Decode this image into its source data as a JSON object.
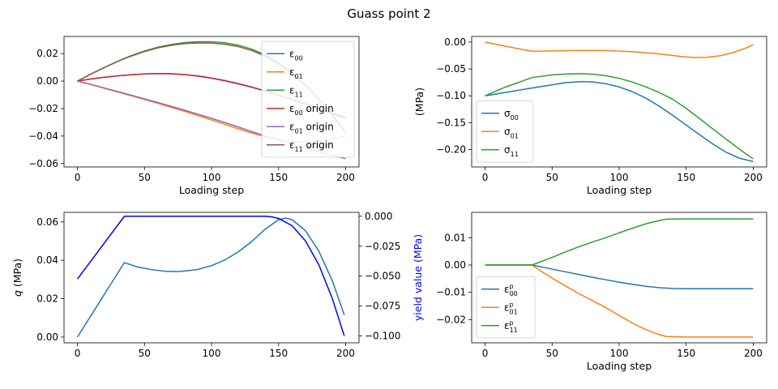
{
  "suptitle": "Guass point 2",
  "colors": {
    "c0": "#1f77b4",
    "c1": "#ff7f0e",
    "c2": "#2ca02c",
    "c3": "#d62728",
    "c4": "#9467bd",
    "c5": "#8c564b",
    "yield": "#0000ff"
  },
  "chart_data": [
    {
      "id": "strain",
      "type": "line",
      "xlabel": "Loading step",
      "ylabel": "",
      "xlim": [
        -10,
        210
      ],
      "ylim": [
        -0.0625,
        0.0325
      ],
      "xticks": [
        0,
        50,
        100,
        150,
        200
      ],
      "yticks": [
        -0.06,
        -0.04,
        -0.02,
        0.0,
        0.02
      ],
      "ytick_labels": [
        "−0.06",
        "−0.04",
        "−0.02",
        "0.00",
        "0.02"
      ],
      "legend_position": "upper right",
      "series": [
        {
          "sym": "ε",
          "sub": "00",
          "suffix": "",
          "color": "#1f77b4",
          "x": [
            0,
            10,
            20,
            30,
            40,
            50,
            55,
            60,
            70,
            80,
            90,
            100,
            110,
            120,
            130,
            140,
            150,
            160,
            170,
            180,
            190,
            200
          ],
          "y": [
            0,
            0.0015,
            0.0028,
            0.0038,
            0.0046,
            0.0052,
            0.0054,
            0.0055,
            0.0054,
            0.0048,
            0.0038,
            0.0023,
            0.0004,
            -0.0018,
            -0.0043,
            -0.0071,
            -0.0101,
            -0.0132,
            -0.0165,
            -0.0198,
            -0.0232,
            -0.0265
          ]
        },
        {
          "sym": "ε",
          "sub": "01",
          "suffix": "",
          "color": "#ff7f0e",
          "x": [
            0,
            10,
            20,
            30,
            40,
            50,
            60,
            70,
            80,
            90,
            100,
            110,
            120,
            130,
            140,
            150,
            160,
            170,
            180,
            190,
            200
          ],
          "y": [
            0,
            -0.0025,
            -0.0052,
            -0.0079,
            -0.0106,
            -0.0134,
            -0.0162,
            -0.0191,
            -0.022,
            -0.0251,
            -0.0283,
            -0.0315,
            -0.0347,
            -0.0378,
            -0.0404,
            -0.0424,
            -0.0437,
            -0.0441,
            -0.0436,
            -0.042,
            -0.04
          ]
        },
        {
          "sym": "ε",
          "sub": "11",
          "suffix": "",
          "color": "#2ca02c",
          "x": [
            0,
            10,
            20,
            30,
            40,
            50,
            60,
            70,
            80,
            90,
            100,
            110,
            120,
            130,
            140,
            150,
            160,
            170,
            180,
            190,
            200
          ],
          "y": [
            0,
            0.0051,
            0.0099,
            0.0145,
            0.0185,
            0.0219,
            0.0247,
            0.0267,
            0.0281,
            0.0287,
            0.0287,
            0.0279,
            0.0262,
            0.0233,
            0.0191,
            0.0133,
            0.0061,
            -0.0027,
            -0.0129,
            -0.0245,
            -0.0375
          ]
        },
        {
          "sym": "ε",
          "sub": "00",
          "suffix": " origin",
          "color": "#d62728",
          "x": [
            0,
            10,
            20,
            30,
            40,
            50,
            55,
            60,
            70,
            80,
            90,
            100,
            110,
            120,
            130,
            140,
            150,
            160,
            170,
            180,
            190,
            200
          ],
          "y": [
            0,
            0.0015,
            0.0028,
            0.0038,
            0.0046,
            0.0052,
            0.0054,
            0.0055,
            0.0053,
            0.0047,
            0.0036,
            0.0021,
            0.0002,
            -0.002,
            -0.0045,
            -0.0073,
            -0.0103,
            -0.0135,
            -0.0168,
            -0.0202,
            -0.0237,
            -0.0272
          ]
        },
        {
          "sym": "ε",
          "sub": "01",
          "suffix": " origin",
          "color": "#9467bd",
          "x": [
            0,
            10,
            20,
            30,
            40,
            50,
            60,
            70,
            80,
            90,
            100,
            110,
            120,
            130,
            140,
            150,
            160,
            170,
            180,
            190,
            200
          ],
          "y": [
            0,
            -0.0024,
            -0.005,
            -0.0076,
            -0.0102,
            -0.0129,
            -0.0156,
            -0.0184,
            -0.0212,
            -0.0241,
            -0.0271,
            -0.0302,
            -0.0334,
            -0.0367,
            -0.0399,
            -0.043,
            -0.046,
            -0.0488,
            -0.0514,
            -0.0539,
            -0.0565
          ]
        },
        {
          "sym": "ε",
          "sub": "11",
          "suffix": " origin",
          "color": "#8c564b",
          "x": [
            0,
            10,
            20,
            30,
            40,
            50,
            60,
            70,
            80,
            90,
            100,
            110,
            120,
            130,
            140,
            150,
            160,
            170,
            180,
            190,
            200
          ],
          "y": [
            0,
            0.0051,
            0.0098,
            0.0143,
            0.0182,
            0.0215,
            0.0242,
            0.0261,
            0.0273,
            0.0278,
            0.0277,
            0.0268,
            0.0251,
            0.0223,
            0.0182,
            0.0126,
            0.0055,
            -0.0031,
            -0.0131,
            -0.0245,
            -0.0373
          ]
        }
      ]
    },
    {
      "id": "stress",
      "type": "line",
      "xlabel": "Loading step",
      "ylabel": "(MPa)",
      "xlim": [
        -10,
        210
      ],
      "ylim": [
        -0.2325,
        0.0105
      ],
      "xticks": [
        0,
        50,
        100,
        150,
        200
      ],
      "yticks": [
        -0.2,
        -0.15,
        -0.1,
        -0.05,
        0.0
      ],
      "ytick_labels": [
        "−0.20",
        "−0.15",
        "−0.10",
        "−0.05",
        "0.00"
      ],
      "legend_position": "lower left",
      "series": [
        {
          "sym": "σ",
          "sub": "00",
          "suffix": "",
          "color": "#1f77b4",
          "x": [
            0,
            35,
            50,
            60,
            72,
            80,
            90,
            100,
            110,
            120,
            130,
            140,
            150,
            160,
            170,
            180,
            190,
            200
          ],
          "y": [
            -0.1,
            -0.0855,
            -0.0795,
            -0.0755,
            -0.0735,
            -0.0742,
            -0.0775,
            -0.0835,
            -0.0925,
            -0.1045,
            -0.1195,
            -0.1365,
            -0.1545,
            -0.1725,
            -0.19,
            -0.2055,
            -0.2165,
            -0.2225
          ]
        },
        {
          "sym": "σ",
          "sub": "01",
          "suffix": "",
          "color": "#ff7f0e",
          "x": [
            0,
            10,
            20,
            35,
            50,
            70,
            90,
            110,
            130,
            145,
            155,
            165,
            175,
            185,
            195,
            200
          ],
          "y": [
            0,
            -0.005,
            -0.01,
            -0.017,
            -0.0165,
            -0.0155,
            -0.0158,
            -0.0178,
            -0.022,
            -0.0265,
            -0.0285,
            -0.0283,
            -0.0255,
            -0.0195,
            -0.0105,
            -0.0045
          ]
        },
        {
          "sym": "σ",
          "sub": "11",
          "suffix": "",
          "color": "#2ca02c",
          "x": [
            0,
            15,
            35,
            50,
            60,
            72,
            80,
            90,
            100,
            110,
            120,
            130,
            140,
            150,
            160,
            170,
            180,
            190,
            200
          ],
          "y": [
            -0.1,
            -0.084,
            -0.066,
            -0.061,
            -0.0595,
            -0.0587,
            -0.0597,
            -0.0625,
            -0.0675,
            -0.0745,
            -0.0835,
            -0.094,
            -0.1065,
            -0.1235,
            -0.1425,
            -0.162,
            -0.181,
            -0.2,
            -0.2175
          ]
        }
      ]
    },
    {
      "id": "q",
      "type": "line",
      "xlabel": "",
      "ylabel": "q (MPa)",
      "ylabel_sym": "q",
      "ylabel_unit": " (MPa)",
      "y2label": "yield value (MPa)",
      "xlim": [
        -10,
        210
      ],
      "ylim": [
        -0.003,
        0.065
      ],
      "y2lim": [
        -0.1058,
        0.0033
      ],
      "xticks": [
        0,
        50,
        100,
        150,
        200
      ],
      "yticks": [
        0.0,
        0.02,
        0.04,
        0.06
      ],
      "ytick_labels": [
        "0.00",
        "0.02",
        "0.04",
        "0.06"
      ],
      "y2ticks": [
        -0.1,
        -0.075,
        -0.05,
        -0.025,
        0.0
      ],
      "y2tick_labels": [
        "−0.100",
        "−0.075",
        "−0.050",
        "−0.025",
        "0.000"
      ],
      "series": [
        {
          "name": "q",
          "axis": "left",
          "color": "#1f77b4",
          "x": [
            0,
            35,
            45,
            55,
            65,
            73,
            80,
            90,
            100,
            110,
            120,
            130,
            140,
            150,
            155,
            160,
            170,
            180,
            190,
            199
          ],
          "y": [
            0,
            0.0388,
            0.0365,
            0.0352,
            0.0343,
            0.0341,
            0.0344,
            0.0353,
            0.0372,
            0.0402,
            0.0444,
            0.0498,
            0.0562,
            0.0612,
            0.062,
            0.0612,
            0.0555,
            0.0448,
            0.0295,
            0.0115
          ]
        },
        {
          "name": "yield value",
          "axis": "right",
          "color": "#0000ff",
          "x": [
            0,
            35,
            50,
            100,
            140,
            145,
            150,
            160,
            170,
            180,
            190,
            199
          ],
          "y": [
            -0.0525,
            0,
            0,
            0,
            0,
            -0.0005,
            -0.0018,
            -0.0078,
            -0.0205,
            -0.0405,
            -0.0685,
            -0.1
          ]
        }
      ]
    },
    {
      "id": "plastic",
      "type": "line",
      "xlabel": "Loading step",
      "ylabel": "",
      "xlim": [
        -10,
        210
      ],
      "ylim": [
        -0.0285,
        0.0193
      ],
      "xticks": [
        0,
        50,
        100,
        150,
        200
      ],
      "yticks": [
        -0.02,
        -0.01,
        0.0,
        0.01
      ],
      "ytick_labels": [
        "−0.02",
        "−0.01",
        "0.00",
        "0.01"
      ],
      "legend_position": "lower left",
      "series": [
        {
          "sym": "ε",
          "sub": "00",
          "sup": "p",
          "suffix": "",
          "color": "#1f77b4",
          "x": [
            0,
            35,
            50,
            60,
            70,
            80,
            90,
            100,
            110,
            120,
            130,
            140,
            150,
            175,
            200
          ],
          "y": [
            0,
            0,
            -0.0015,
            -0.0025,
            -0.0035,
            -0.0045,
            -0.0054,
            -0.0063,
            -0.0071,
            -0.0078,
            -0.0083,
            -0.0086,
            -0.0087,
            -0.0087,
            -0.0087
          ]
        },
        {
          "sym": "ε",
          "sub": "01",
          "sup": "p",
          "suffix": "",
          "color": "#ff7f0e",
          "x": [
            0,
            35,
            40,
            50,
            60,
            70,
            80,
            90,
            100,
            110,
            120,
            130,
            135,
            150,
            175,
            200
          ],
          "y": [
            0,
            0,
            -0.0017,
            -0.0048,
            -0.0077,
            -0.0105,
            -0.013,
            -0.0156,
            -0.0185,
            -0.0213,
            -0.0237,
            -0.0255,
            -0.0262,
            -0.0264,
            -0.0264,
            -0.0264
          ]
        },
        {
          "sym": "ε",
          "sub": "11",
          "sup": "p",
          "suffix": "",
          "color": "#2ca02c",
          "x": [
            0,
            35,
            50,
            60,
            70,
            80,
            90,
            100,
            110,
            120,
            130,
            135,
            150,
            175,
            200
          ],
          "y": [
            0,
            0,
            0.0028,
            0.0048,
            0.0067,
            0.0084,
            0.01,
            0.0118,
            0.0135,
            0.0151,
            0.0163,
            0.0168,
            0.0169,
            0.0169,
            0.0169
          ]
        }
      ]
    }
  ]
}
